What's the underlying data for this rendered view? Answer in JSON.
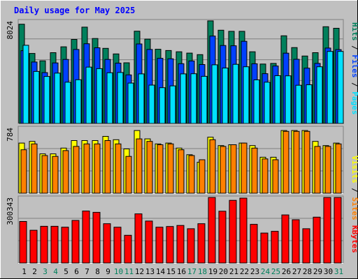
{
  "title": "Daily usage for May 2025",
  "colors": {
    "background": "#c0c0c0",
    "title": "#0000ff",
    "hits": "#00805c",
    "files": "#0040ff",
    "pages": "#00e0ff",
    "visits": "#ffff00",
    "sites": "#ff8000",
    "kbytes": "#ff0000",
    "weekday_label": "#000000",
    "weekend_label": "#00805c"
  },
  "chart_data": [
    {
      "type": "bar",
      "name": "hits-files-pages",
      "categories": [
        "1",
        "2",
        "3",
        "4",
        "5",
        "6",
        "7",
        "8",
        "9",
        "10",
        "11",
        "12",
        "13",
        "14",
        "15",
        "16",
        "17",
        "18",
        "19",
        "20",
        "21",
        "22",
        "23",
        "24",
        "25",
        "26",
        "27",
        "28",
        "29",
        "30",
        "31"
      ],
      "weekend_days": [
        "3",
        "4",
        "10",
        "11",
        "17",
        "18",
        "24",
        "25",
        "31"
      ],
      "y_tick_label": "8024",
      "ylim": [
        0,
        8024
      ],
      "legend": [
        {
          "label": "Pages",
          "color": "#00e0ff"
        },
        {
          "label": "Files",
          "color": "#0040ff"
        },
        {
          "label": "Hits",
          "color": "#00805c"
        }
      ],
      "series": [
        {
          "name": "Hits",
          "values": [
            7770,
            5480,
            4900,
            5540,
            6000,
            6580,
            7540,
            6650,
            5880,
            5440,
            4750,
            7220,
            6600,
            5810,
            5710,
            5610,
            5510,
            5390,
            8030,
            7300,
            7210,
            7210,
            5610,
            4650,
            4700,
            6860,
            5940,
            5280,
            5540,
            7570,
            7450
          ]
        },
        {
          "name": "Files",
          "values": [
            5700,
            4810,
            3980,
            4740,
            5010,
            5790,
            6240,
            5920,
            5010,
            4720,
            3800,
            6220,
            5790,
            5100,
            5060,
            4680,
            4890,
            4610,
            6840,
            6100,
            6080,
            6430,
            4670,
            3900,
            4500,
            5500,
            5020,
            4330,
            4700,
            5900,
            5780
          ]
        },
        {
          "name": "Pages",
          "values": [
            6120,
            4070,
            3680,
            3940,
            3230,
            3420,
            4410,
            4290,
            3970,
            3990,
            3160,
            3880,
            3000,
            2800,
            2940,
            3880,
            3890,
            3690,
            4590,
            4340,
            4630,
            4440,
            3410,
            3230,
            3740,
            3730,
            2990,
            3030,
            4440,
            5640,
            5640
          ]
        }
      ]
    },
    {
      "type": "bar",
      "name": "visits-sites",
      "categories": [
        "1",
        "2",
        "3",
        "4",
        "5",
        "6",
        "7",
        "8",
        "9",
        "10",
        "11",
        "12",
        "13",
        "14",
        "15",
        "16",
        "17",
        "18",
        "19",
        "20",
        "21",
        "22",
        "23",
        "24",
        "25",
        "26",
        "27",
        "28",
        "29",
        "30",
        "31"
      ],
      "y_tick_label": "784",
      "ylim": [
        0,
        784
      ],
      "legend": [
        {
          "label": "Sites",
          "color": "#ff8000"
        },
        {
          "label": "Visits",
          "color": "#ffff00"
        }
      ],
      "series": [
        {
          "name": "Visits",
          "values": [
            600,
            620,
            470,
            470,
            540,
            630,
            630,
            630,
            680,
            640,
            530,
            750,
            650,
            590,
            600,
            540,
            460,
            370,
            670,
            570,
            580,
            600,
            570,
            430,
            430,
            750,
            750,
            750,
            620,
            570,
            600
          ]
        },
        {
          "name": "Sites",
          "values": [
            520,
            590,
            450,
            440,
            510,
            560,
            590,
            590,
            630,
            590,
            440,
            650,
            620,
            580,
            590,
            520,
            450,
            400,
            640,
            560,
            580,
            600,
            540,
            410,
            400,
            740,
            740,
            740,
            560,
            560,
            590
          ]
        }
      ]
    },
    {
      "type": "bar",
      "name": "kbytes",
      "categories": [
        "1",
        "2",
        "3",
        "4",
        "5",
        "6",
        "7",
        "8",
        "9",
        "10",
        "11",
        "12",
        "13",
        "14",
        "15",
        "16",
        "17",
        "18",
        "19",
        "20",
        "21",
        "22",
        "23",
        "24",
        "25",
        "26",
        "27",
        "28",
        "29",
        "30",
        "31"
      ],
      "y_tick_label": "300343",
      "ylim": [
        0,
        300343
      ],
      "legend": [
        {
          "label": "KBytes",
          "color": "#ff0000"
        }
      ],
      "series": [
        {
          "name": "KBytes",
          "values": [
            190000,
            150000,
            168000,
            168000,
            164000,
            195000,
            238000,
            232000,
            180000,
            164000,
            127000,
            225000,
            192000,
            164000,
            167000,
            172000,
            157000,
            180000,
            300000,
            237000,
            287000,
            297000,
            177000,
            137000,
            145000,
            220000,
            198000,
            157000,
            210000,
            300000,
            300000
          ]
        }
      ]
    }
  ]
}
